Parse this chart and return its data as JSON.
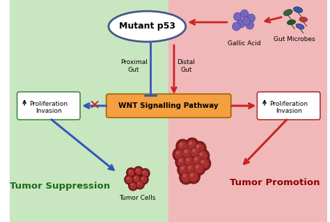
{
  "bg_left_color": "#c8e6c0",
  "bg_right_color": "#f0b8b8",
  "wnt_box_color": "#f5a040",
  "wnt_box_text": "WNT Signalling Pathway",
  "mutant_p53_text": "Mutant p53",
  "mutant_ellipse_edgecolor": "#445588",
  "proximal_gut_text": "Proximal\nGut",
  "distal_gut_text": "Distal\nGut",
  "gallic_acid_text": "Gallic Acid",
  "gut_microbes_text": "Gut Microbes",
  "proliferation_left_text": "Proliferation\nInvasion",
  "proliferation_right_text": "Proliferation\nInvasion",
  "tumor_suppression_text": "Tumor Suppression",
  "tumor_promotion_text": "Tumor Promotion",
  "tumor_cells_text": "Tumor Cells",
  "red_color": "#cc2222",
  "blue_color": "#3355bb",
  "tumor_cell_color": "#8b2020",
  "tumor_cell_highlight": "#c05050",
  "tumor_cell_edge": "#5a0a0a"
}
